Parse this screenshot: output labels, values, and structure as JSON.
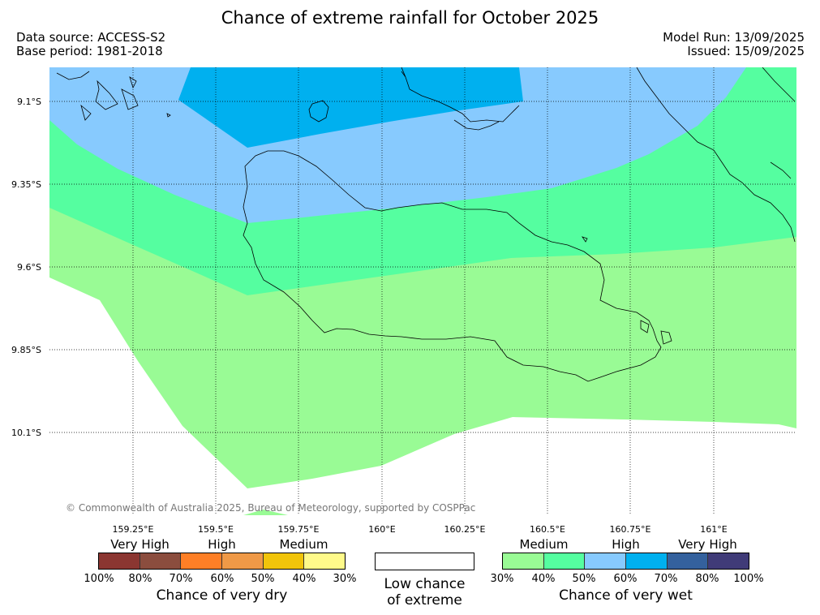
{
  "title": "Chance of extreme rainfall for October 2025",
  "data_source": "Data source: ACCESS-S2",
  "base_period": "Base period: 1981-2018",
  "model_run": "Model Run: 13/09/2025",
  "issued": "Issued: 15/09/2025",
  "copyright": "© Commonwealth of Australia 2025, Bureau of Meteorology, supported by COSPPac",
  "map": {
    "latitude_labels": [
      "9.1°S",
      "9.35°S",
      "9.6°S",
      "9.85°S",
      "10.1°S"
    ],
    "longitude_labels": [
      "159.25°E",
      "159.5°E",
      "159.75°E",
      "160°E",
      "160.25°E",
      "160.5°E",
      "160.75°E",
      "161°E"
    ],
    "zone_colors": {
      "medium_wet": "#99fb95",
      "high_medium_wet": "#55fea0",
      "high_wet": "#87cafe",
      "high_very_wet": "#00b0ef",
      "low_chance": "#ffffff"
    }
  },
  "legend": {
    "dry": {
      "title": "Chance of very dry",
      "categories": [
        "Very High",
        "High",
        "Medium"
      ],
      "percent_labels": [
        "100%",
        "80%",
        "70%",
        "60%",
        "50%",
        "40%",
        "30%"
      ],
      "colors": [
        "#8b3631",
        "#8b4d3e",
        "#fe7f26",
        "#ef9947",
        "#f1c40a",
        "#fffa8a"
      ]
    },
    "low": {
      "title_line1": "Low chance",
      "title_line2": "of extreme",
      "color": "#ffffff"
    },
    "wet": {
      "title": "Chance of very wet",
      "categories": [
        "Medium",
        "High",
        "Very High"
      ],
      "percent_labels": [
        "30%",
        "40%",
        "50%",
        "60%",
        "70%",
        "80%",
        "100%"
      ],
      "colors": [
        "#99fb95",
        "#55fea0",
        "#87cafe",
        "#00b0ef",
        "#34619d",
        "#403b78"
      ]
    }
  }
}
